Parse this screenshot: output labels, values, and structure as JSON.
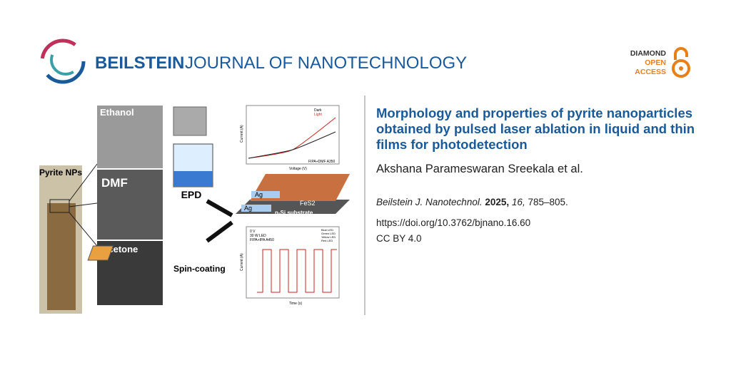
{
  "header": {
    "journal_bold": "BEILSTEIN",
    "journal_rest": "JOURNAL OF NANOTECHNOLOGY",
    "badge": {
      "line1": "DIAMOND",
      "line2": "OPEN",
      "line3": "ACCESS"
    }
  },
  "figure": {
    "sem_labels": [
      "Ethanol",
      "DMF",
      "Acetone"
    ],
    "vial_label": "Pyrite NPs",
    "epd": "EPD",
    "spin": "Spin-coating",
    "device": {
      "ag_top": "Ag",
      "ag_bottom": "Ag",
      "film": "FeS2",
      "substrate": "n-Si substrate"
    },
    "iv_chart": {
      "legend": [
        "Dark",
        "Light"
      ],
      "note": "FIPA+DMF A350",
      "xlabel": "Voltage (V)",
      "ylabel": "Current (A)"
    },
    "time_chart": {
      "legend": [
        "Blue LED",
        "Green LED",
        "Yellow LED",
        "Red LED"
      ],
      "note1": "0 V",
      "note2": "30 W LED",
      "note3": "FIPA+IPA A450",
      "xlabel": "Time (s)",
      "ylabel": "Current (A)"
    }
  },
  "article": {
    "title": "Morphology and properties of pyrite nanoparticles obtained by pulsed laser ablation in liquid and thin films for photodetection",
    "authors": "Akshana Parameswaran Sreekala et al.",
    "citation": {
      "journal": "Beilstein J. Nanotechnol.",
      "year": "2025,",
      "volume": "16,",
      "pages": "785–805."
    },
    "doi": "https://doi.org/10.3762/bjnano.16.60",
    "license": "CC BY 4.0"
  }
}
